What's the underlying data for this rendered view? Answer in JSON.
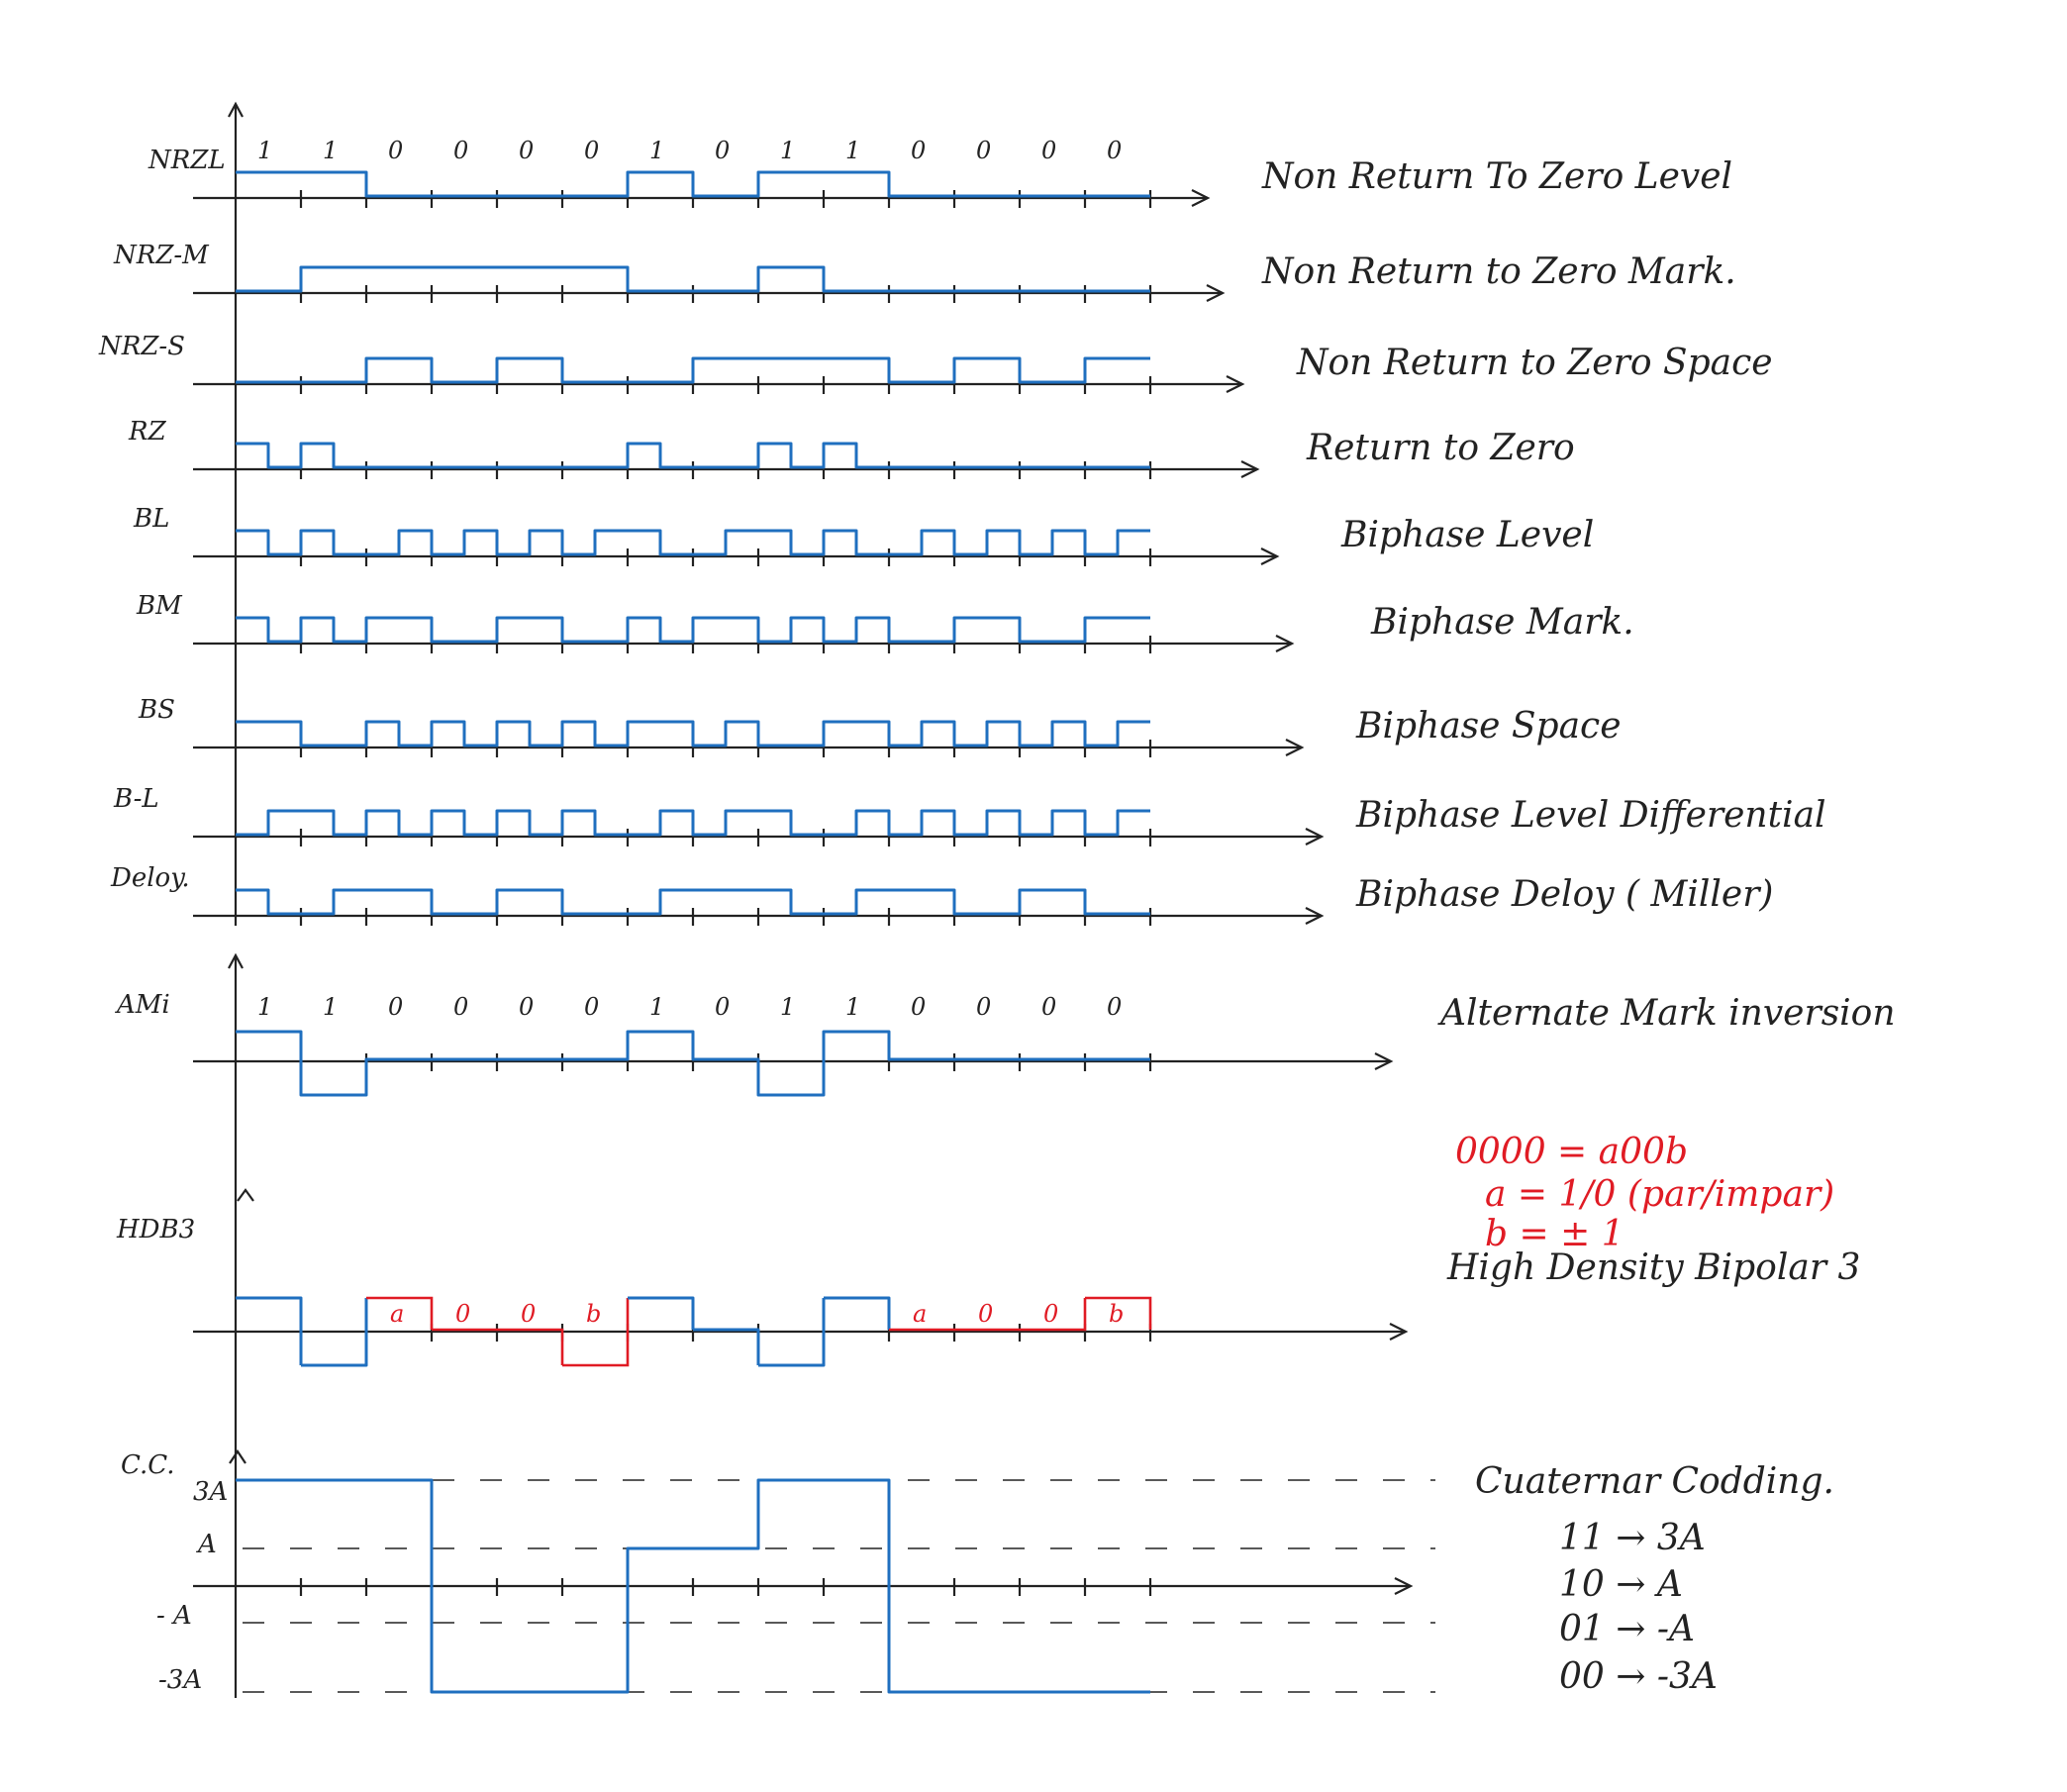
{
  "bits_top": [
    "1",
    "1",
    "0",
    "0",
    "0",
    "0",
    "1",
    "0",
    "1",
    "1",
    "0",
    "0",
    "0",
    "0"
  ],
  "bits_ami": [
    "1",
    "1",
    "0",
    "0",
    "0",
    "0",
    "1",
    "0",
    "1",
    "1",
    "0",
    "0",
    "0",
    "0"
  ],
  "rows": [
    {
      "id": "nrzl",
      "label": "NRZL",
      "desc": "Non Return To Zero Level"
    },
    {
      "id": "nrzm",
      "label": "NRZ-M",
      "desc": "Non Return to Zero Mark."
    },
    {
      "id": "nrzs",
      "label": "NRZ-S",
      "desc": "Non Return to Zero Space"
    },
    {
      "id": "rz",
      "label": "RZ",
      "desc": "Return to Zero"
    },
    {
      "id": "bl",
      "label": "BL",
      "desc": "Biphase Level"
    },
    {
      "id": "bm",
      "label": "BM",
      "desc": "Biphase Mark."
    },
    {
      "id": "bs",
      "label": "BS",
      "desc": "Biphase Space"
    },
    {
      "id": "bdl",
      "label": "B-L",
      "desc": "Biphase Level Differential"
    },
    {
      "id": "delay",
      "label": "Deloy.",
      "desc": "Biphase Deloy ( Miller)"
    }
  ],
  "ami": {
    "label": "AMi",
    "desc": "Alternate Mark inversion"
  },
  "hdb3": {
    "label": "HDB3",
    "desc": "High Density Bipolar 3",
    "rule_lines": [
      "0000 = a00b",
      "a = 1/0 (par/impar)",
      "b = ± 1"
    ],
    "sub_labels": [
      "a",
      "0",
      "0",
      "b",
      "a",
      "0",
      "0",
      "b"
    ]
  },
  "cc": {
    "label": "C.C.",
    "desc": "Cuaternar Codding.",
    "levels": [
      "3A",
      "A",
      "- A",
      "-3A"
    ],
    "mapping": [
      "11 → 3A",
      "10 → A",
      "01 → -A",
      "00 → -3A"
    ]
  },
  "colors": {
    "signal": "#1f6fbf",
    "ink": "#222222",
    "highlight": "#e01b24"
  }
}
